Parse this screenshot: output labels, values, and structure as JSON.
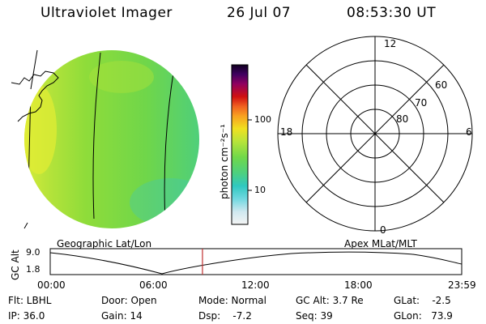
{
  "header": {
    "instrument": "Ultraviolet Imager",
    "date": "26 Jul 07",
    "time": "08:53:30 UT"
  },
  "colorbar": {
    "unit_label": "photon cm⁻²s⁻¹",
    "ticks": [
      "100",
      "10"
    ]
  },
  "polar_plot": {
    "mlt_labels": {
      "top": "12",
      "left": "18",
      "right": "6",
      "bottom": "0"
    },
    "lat_labels": [
      "60",
      "70",
      "80"
    ]
  },
  "panels": {
    "left_caption": "Geographic Lat/Lon",
    "right_caption": "Apex MLat/MLT"
  },
  "altitude_plot": {
    "ylabel": "GC Alt",
    "y_ticks": [
      "9.0",
      "1.8"
    ],
    "x_ticks": [
      "00:00",
      "06:00",
      "12:00",
      "18:00",
      "23:59"
    ],
    "marker_fraction": 0.37
  },
  "info": {
    "filter": "Flt: LBHL",
    "ip": "IP: 36.0",
    "door": "Door: Open",
    "gain": "Gain: 14",
    "mode": "Mode: Normal",
    "dsp": "Dsp:    -7.2",
    "gc_alt": "GC Alt: 3.7 Re",
    "seq": "Seq: 39",
    "glat": "GLat:    -2.5",
    "glon": "GLon:   73.9"
  },
  "colors": {
    "marker": "#c03030",
    "image_main": "#8fdc3a"
  }
}
